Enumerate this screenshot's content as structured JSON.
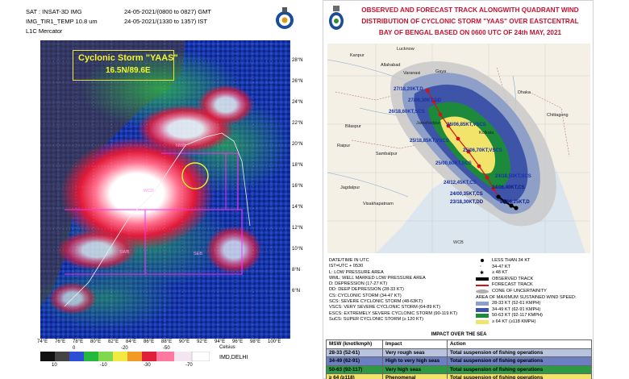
{
  "satellite": {
    "header": {
      "line1_label": "SAT : INSAT-3D IMG",
      "line1_time": "24-05-2021/(0800 to 0827) GMT",
      "line2_label": "IMG_TIR1_TEMP 10.8 um",
      "line2_time": "24-05-2021/(1330 to 1357) IST",
      "line3": "L1C Mercator"
    },
    "storm_label": {
      "title": "Cyclonic Storm \"YAAS\"",
      "position": "16.5N/89.6E"
    },
    "lat_labels": [
      "28°N",
      "26°N",
      "24°N",
      "22°N",
      "20°N",
      "18°N",
      "16°N",
      "14°N",
      "12°N",
      "10°N",
      "8°N",
      "6°N"
    ],
    "lon_labels": [
      "74°E",
      "76°E",
      "78°E",
      "80°E",
      "82°E",
      "84°E",
      "86°E",
      "88°E",
      "90°E",
      "92°E",
      "94°E",
      "96°E",
      "98°E",
      "100°E"
    ],
    "region_labels": [
      "NWB",
      "WCB",
      "SEB",
      "SWB"
    ],
    "colorbar": {
      "top_labels": [
        "0",
        "-20",
        "-50"
      ],
      "bottom_labels": [
        "10",
        "-10",
        "-30",
        "-70"
      ],
      "unit": "Celsius",
      "source": "IMD,DELHI"
    }
  },
  "forecast": {
    "title_lines": [
      "OBSERVED AND FORECAST TRACK ALONGWITH QUADRANT WIND",
      "DISTRIBUTION OF CYCLONIC STORM \"YAAS\" OVER EASTCENTRAL",
      "BAY OF BENGAL BASED ON 0600 UTC OF 24th MAY, 2021"
    ],
    "map_places": [
      "Kanpur",
      "Allahabad",
      "Lucknow",
      "Gaya",
      "Varanasi",
      "Jamshedpur",
      "Bilaspur",
      "Raipur",
      "Kolkata",
      "Dhaka",
      "Chittagong",
      "Sambalpur",
      "Visakhapatnam",
      "Jagdalpur"
    ],
    "track_points": [
      {
        "label": "27/18,20KT,D",
        "kind": "forecast"
      },
      {
        "label": "27/06,30KT,DD",
        "kind": "forecast"
      },
      {
        "label": "26/18,60KT,SCS",
        "kind": "forecast"
      },
      {
        "label": "26/06,85KT,VSCS",
        "kind": "forecast"
      },
      {
        "label": "25/18,85KT,VSCS",
        "kind": "forecast"
      },
      {
        "label": "25/06,70KT,VSCS",
        "kind": "forecast"
      },
      {
        "label": "25/00,60KT,SCS",
        "kind": "forecast"
      },
      {
        "label": "24/18,50KT,SCS",
        "kind": "forecast"
      },
      {
        "label": "24/12,45KT,CS",
        "kind": "forecast"
      },
      {
        "label": "24/06,40KT,CS",
        "kind": "observed"
      },
      {
        "label": "24/00,35KT,CS",
        "kind": "observed"
      },
      {
        "label": "23/18,30KT,DD",
        "kind": "observed"
      },
      {
        "label": "23/06,25KT,D",
        "kind": "observed"
      }
    ],
    "map_region_label": "WCB",
    "legend_left": [
      "DATE/TIME IN UTC",
      "IST=UTC + 0530",
      "L: LOW PRESSURE AREA",
      "WML: WELL MARKED LOW PRESSURE AREA",
      "D: DEPRESSION (17-27 KT)",
      "DD: DEEP DEPRESSION (28-33 KT)",
      "CS: CYCLONIC STORM (34-47 KT)",
      "SCS: SEVERE CYCLONIC STORM (48-63KT)",
      "VSCS: VERY SEVERE CYCLONIC STORM (64-89 KT)",
      "ESCS: EXTREMELY SEVERE CYCLONIC STORM (90-119 KT)",
      "SuCS: SUPER CYCLONIC STORM (≥ 120 KT)"
    ],
    "legend_right": [
      {
        "label": "LESS THAN 34 KT",
        "swatch": "dot-black"
      },
      {
        "label": "34-47 KT",
        "swatch": "storm-small"
      },
      {
        "label": "≥ 48 KT",
        "swatch": "storm-large"
      },
      {
        "label": "OBSERVED TRACK",
        "swatch": "black-bar"
      },
      {
        "label": "FORECAST TRACK",
        "swatch": "red-bar"
      },
      {
        "label": "CONE OF UNCERTAINITY",
        "swatch": "grey-ellipse"
      },
      {
        "label": "AREA OF MAXIMUM SUSTAINED WIND SPEED:",
        "swatch": "none"
      },
      {
        "label": "28-33 KT (52-61 KMPH)",
        "swatch": "#8ea0c8"
      },
      {
        "label": "34-49 KT (62-91 KMPH)",
        "swatch": "#3e54a8"
      },
      {
        "label": "50-63 KT (92-117 KMPH)",
        "swatch": "#1c8a3a"
      },
      {
        "label": "≥ 64 KT (≥118 KMPH)",
        "swatch": "#f2e36a"
      }
    ],
    "impact": {
      "title": "IMPACT OVER THE SEA",
      "headers": [
        "MSW (knot/kmph)",
        "Impact",
        "Action"
      ],
      "rows": [
        {
          "msw": "28-33 (52-61)",
          "impact": "Very rough seas",
          "action": "Total suspension of fishing operations",
          "color": "#b8c4de"
        },
        {
          "msw": "34-49 (62-91)",
          "impact": "High to very high seas",
          "action": "Total suspension of fishing operations",
          "color": "#6b7fc2"
        },
        {
          "msw": "50-63 (92-117)",
          "impact": "Very high seas",
          "action": "Total suspension of fishing operations",
          "color": "#2e9a44"
        },
        {
          "msw": "≥ 64 (≥118)",
          "impact": "Phenomenal",
          "action": "Total suspension of fishing operations",
          "color": "#f2e36a"
        }
      ]
    }
  }
}
